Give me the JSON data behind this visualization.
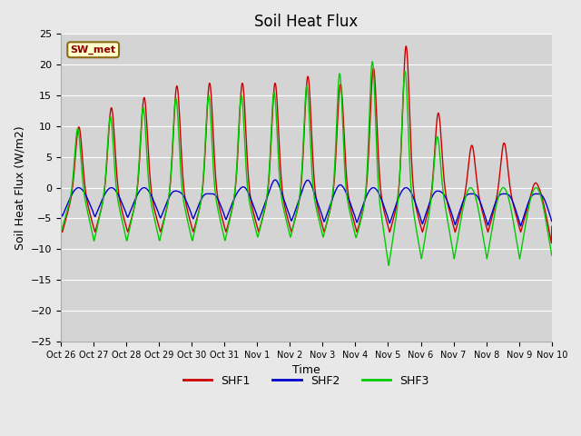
{
  "title": "Soil Heat Flux",
  "ylabel": "Soil Heat Flux (W/m2)",
  "xlabel": "Time",
  "ylim": [
    -25,
    25
  ],
  "yticks": [
    -25,
    -20,
    -15,
    -10,
    -5,
    0,
    5,
    10,
    15,
    20,
    25
  ],
  "xtick_labels": [
    "Oct 26",
    "Oct 27",
    "Oct 28",
    "Oct 29",
    "Oct 30",
    "Oct 31",
    "Nov 1",
    "Nov 2",
    "Nov 3",
    "Nov 4",
    "Nov 5",
    "Nov 6",
    "Nov 7",
    "Nov 8",
    "Nov 9",
    "Nov 10"
  ],
  "series_colors": [
    "#cc0000",
    "#0000cc",
    "#00cc00"
  ],
  "series_names": [
    "SHF1",
    "SHF2",
    "SHF3"
  ],
  "legend_label": "SW_met",
  "bg_color": "#e8e8e8",
  "plot_bg_color": "#d4d4d4",
  "grid_color": "#ffffff",
  "title_fontsize": 12,
  "axis_fontsize": 9,
  "tick_fontsize": 8
}
